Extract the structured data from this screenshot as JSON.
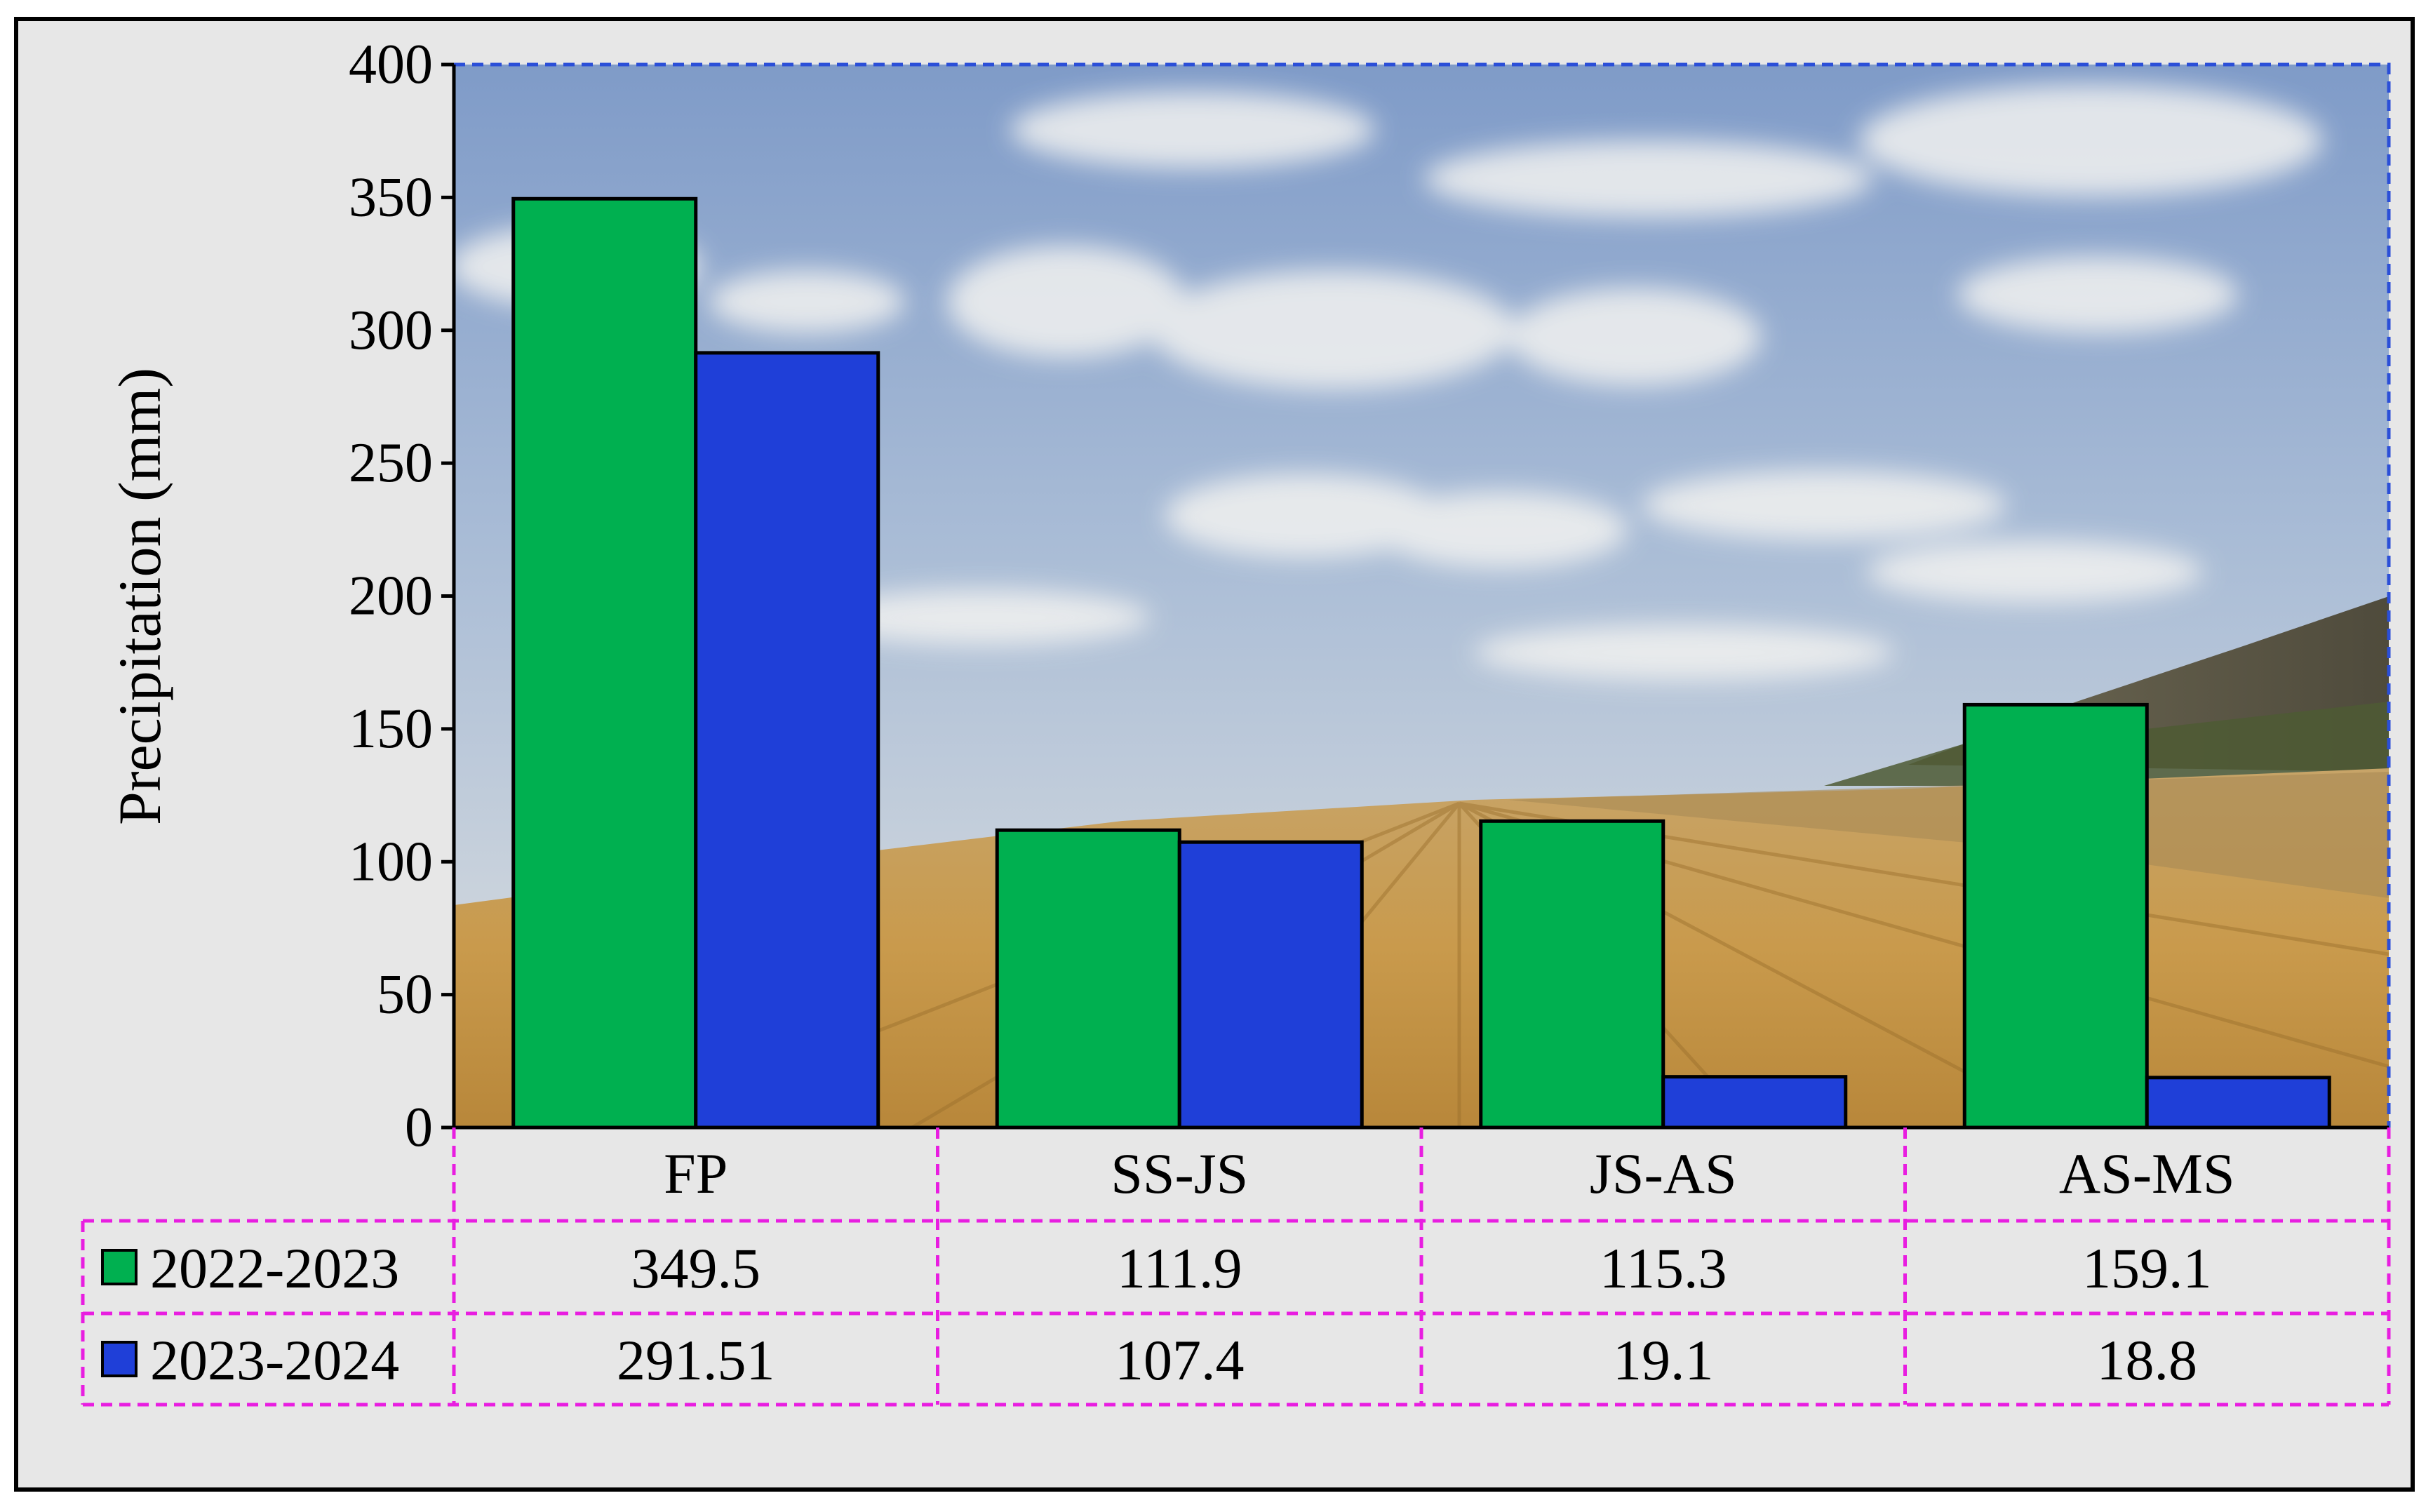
{
  "chart_data": {
    "type": "bar",
    "title": "",
    "xlabel": "",
    "ylabel": "Precipitation (mm)",
    "ylim": [
      0,
      400
    ],
    "yticks": [
      0,
      50,
      100,
      150,
      200,
      250,
      300,
      350,
      400
    ],
    "categories": [
      "FP",
      "SS-JS",
      "JS-AS",
      "AS-MS"
    ],
    "series": [
      {
        "name": "2022-2023",
        "color": "#00b050",
        "values": [
          349.5,
          111.9,
          115.3,
          159.1
        ],
        "labels": [
          "349.5",
          "111.9",
          "115.3",
          "159.1"
        ]
      },
      {
        "name": "2023-2024",
        "color": "#1f3fd8",
        "values": [
          291.51,
          107.4,
          19.1,
          18.8
        ],
        "labels": [
          "291.51",
          "107.4",
          "19.1",
          "18.8"
        ]
      }
    ],
    "data_table": true,
    "legend": "data-table-left",
    "grid": false,
    "background": "photo of wheat field under cloudy sky"
  }
}
